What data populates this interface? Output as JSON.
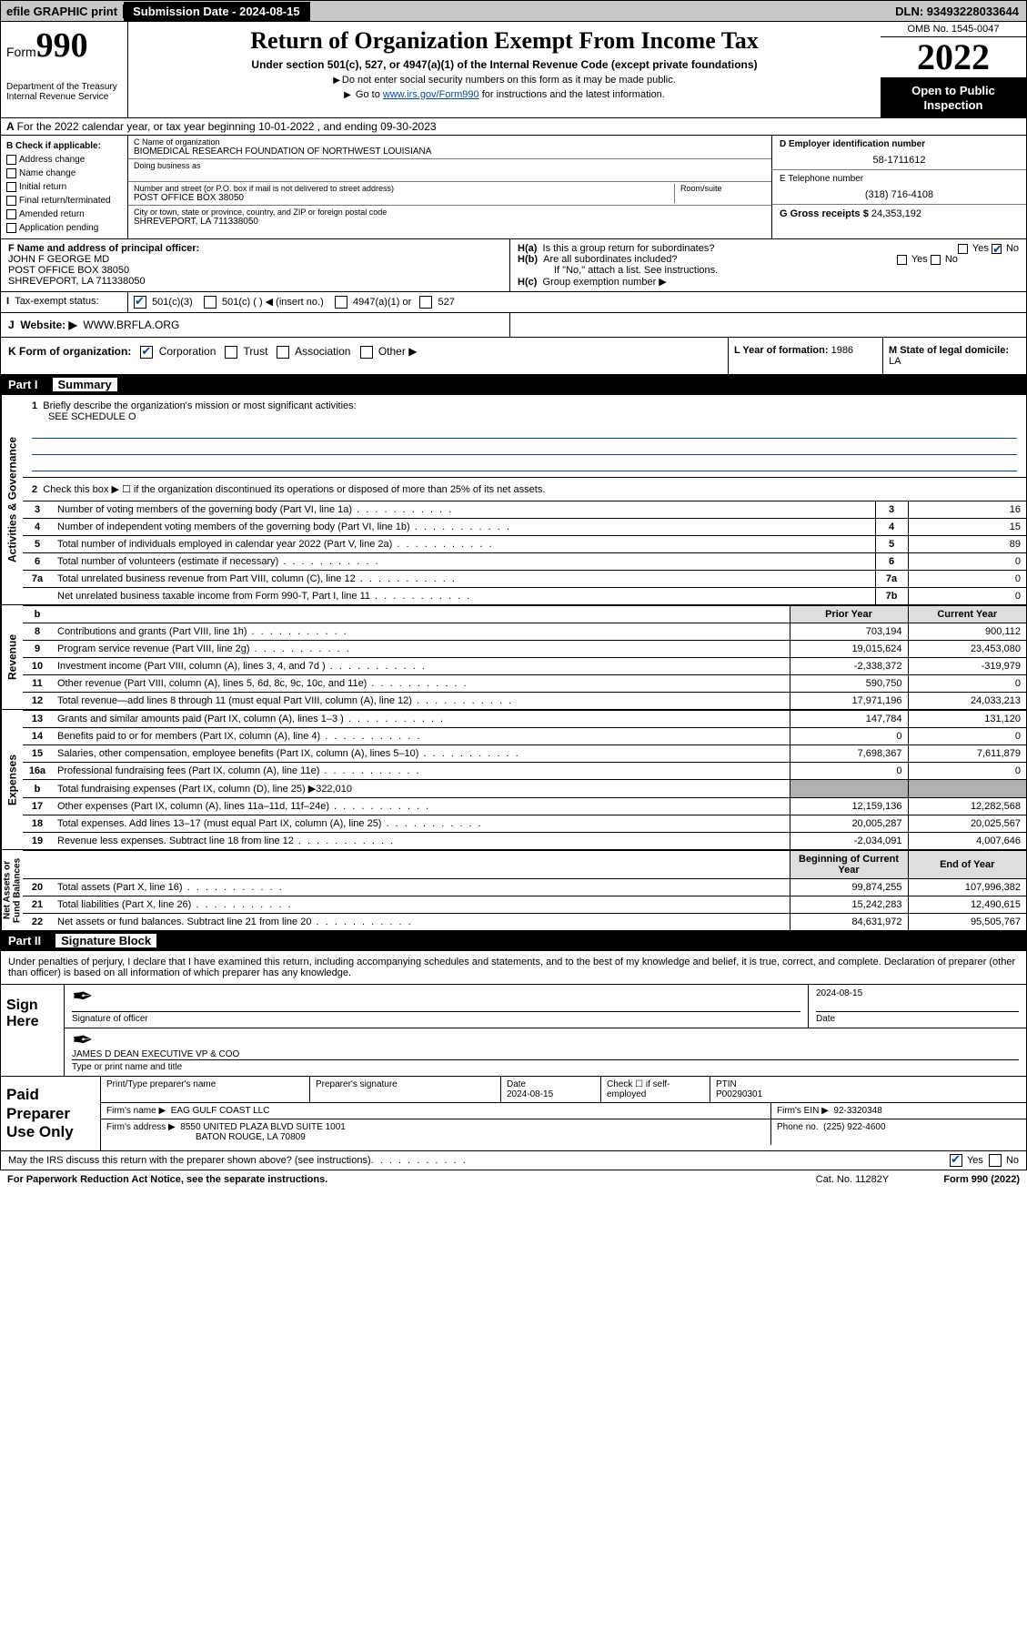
{
  "topbar": {
    "print_label": "efile GRAPHIC print",
    "submission_label": "Submission Date - 2024-08-15",
    "dln": "DLN: 93493228033644"
  },
  "header": {
    "form_prefix": "Form",
    "form_number": "990",
    "title": "Return of Organization Exempt From Income Tax",
    "subtitle": "Under section 501(c), 527, or 4947(a)(1) of the Internal Revenue Code (except private foundations)",
    "note1": "Do not enter social security numbers on this form as it may be made public.",
    "note2_prefix": "Go to ",
    "note2_link": "www.irs.gov/Form990",
    "note2_suffix": " for instructions and the latest information.",
    "dept": "Department of the Treasury\nInternal Revenue Service",
    "omb": "OMB No. 1545-0047",
    "year": "2022",
    "inspection": "Open to Public Inspection"
  },
  "rowA": "For the 2022 calendar year, or tax year beginning 10-01-2022     , and ending 09-30-2023",
  "B": {
    "header": "B Check if applicable:",
    "items": [
      "Address change",
      "Name change",
      "Initial return",
      "Final return/terminated",
      "Amended return",
      "Application pending"
    ]
  },
  "C": {
    "name_label": "C Name of organization",
    "name": "BIOMEDICAL RESEARCH FOUNDATION OF NORTHWEST LOUISIANA",
    "dba_label": "Doing business as",
    "street_label": "Number and street (or P.O. box if mail is not delivered to street address)",
    "street": "POST OFFICE BOX 38050",
    "suite_label": "Room/suite",
    "city_label": "City or town, state or province, country, and ZIP or foreign postal code",
    "city": "SHREVEPORT, LA  711338050"
  },
  "D": {
    "label": "D Employer identification number",
    "value": "58-1711612"
  },
  "E": {
    "label": "E Telephone number",
    "value": "(318) 716-4108"
  },
  "G": {
    "label": "G Gross receipts $",
    "value": "24,353,192"
  },
  "F": {
    "label": "F Name and address of principal officer:",
    "name": "JOHN F GEORGE MD",
    "addr1": "POST OFFICE BOX 38050",
    "addr2": "SHREVEPORT, LA  711338050"
  },
  "H": {
    "a": "Is this a group return for subordinates?",
    "b": "Are all subordinates included?",
    "note": "If \"No,\" attach a list. See instructions.",
    "c": "Group exemption number ▶",
    "yes": "Yes",
    "no": "No"
  },
  "I": {
    "label": "Tax-exempt status:",
    "opts": [
      "501(c)(3)",
      "501(c) (  ) ◀ (insert no.)",
      "4947(a)(1) or",
      "527"
    ]
  },
  "J": {
    "label": "Website: ▶",
    "value": "WWW.BRFLA.ORG"
  },
  "K": {
    "label": "K Form of organization:",
    "opts": [
      "Corporation",
      "Trust",
      "Association",
      "Other ▶"
    ]
  },
  "L": {
    "label": "L Year of formation:",
    "value": "1986"
  },
  "M": {
    "label": "M State of legal domicile:",
    "value": "LA"
  },
  "part1": {
    "label": "Part I",
    "title": "Summary"
  },
  "summary": {
    "q1": "Briefly describe the organization's mission or most significant activities:",
    "q1_ans": "SEE SCHEDULE O",
    "q2": "Check this box ▶ ☐  if the organization discontinued its operations or disposed of more than 25% of its net assets.",
    "rows_top": [
      {
        "n": "3",
        "d": "Number of voting members of the governing body (Part VI, line 1a)",
        "box": "3",
        "v": "16"
      },
      {
        "n": "4",
        "d": "Number of independent voting members of the governing body (Part VI, line 1b)",
        "box": "4",
        "v": "15"
      },
      {
        "n": "5",
        "d": "Total number of individuals employed in calendar year 2022 (Part V, line 2a)",
        "box": "5",
        "v": "89"
      },
      {
        "n": "6",
        "d": "Total number of volunteers (estimate if necessary)",
        "box": "6",
        "v": "0"
      },
      {
        "n": "7a",
        "d": "Total unrelated business revenue from Part VIII, column (C), line 12",
        "box": "7a",
        "v": "0"
      },
      {
        "n": "",
        "d": "Net unrelated business taxable income from Form 990-T, Part I, line 11",
        "box": "7b",
        "v": "0"
      }
    ],
    "hdr_prior": "Prior Year",
    "hdr_current": "Current Year",
    "revenue": [
      {
        "n": "8",
        "d": "Contributions and grants (Part VIII, line 1h)",
        "pv": "703,194",
        "cv": "900,112"
      },
      {
        "n": "9",
        "d": "Program service revenue (Part VIII, line 2g)",
        "pv": "19,015,624",
        "cv": "23,453,080"
      },
      {
        "n": "10",
        "d": "Investment income (Part VIII, column (A), lines 3, 4, and 7d )",
        "pv": "-2,338,372",
        "cv": "-319,979"
      },
      {
        "n": "11",
        "d": "Other revenue (Part VIII, column (A), lines 5, 6d, 8c, 9c, 10c, and 11e)",
        "pv": "590,750",
        "cv": "0"
      },
      {
        "n": "12",
        "d": "Total revenue—add lines 8 through 11 (must equal Part VIII, column (A), line 12)",
        "pv": "17,971,196",
        "cv": "24,033,213"
      }
    ],
    "expenses": [
      {
        "n": "13",
        "d": "Grants and similar amounts paid (Part IX, column (A), lines 1–3 )",
        "pv": "147,784",
        "cv": "131,120"
      },
      {
        "n": "14",
        "d": "Benefits paid to or for members (Part IX, column (A), line 4)",
        "pv": "0",
        "cv": "0"
      },
      {
        "n": "15",
        "d": "Salaries, other compensation, employee benefits (Part IX, column (A), lines 5–10)",
        "pv": "7,698,367",
        "cv": "7,611,879"
      },
      {
        "n": "16a",
        "d": "Professional fundraising fees (Part IX, column (A), line 11e)",
        "pv": "0",
        "cv": "0"
      }
    ],
    "exp_b": {
      "n": "b",
      "d": "Total fundraising expenses (Part IX, column (D), line 25) ▶322,010"
    },
    "expenses2": [
      {
        "n": "17",
        "d": "Other expenses (Part IX, column (A), lines 11a–11d, 11f–24e)",
        "pv": "12,159,136",
        "cv": "12,282,568"
      },
      {
        "n": "18",
        "d": "Total expenses. Add lines 13–17 (must equal Part IX, column (A), line 25)",
        "pv": "20,005,287",
        "cv": "20,025,567"
      },
      {
        "n": "19",
        "d": "Revenue less expenses. Subtract line 18 from line 12",
        "pv": "-2,034,091",
        "cv": "4,007,646"
      }
    ],
    "hdr_begin": "Beginning of Current Year",
    "hdr_end": "End of Year",
    "netassets": [
      {
        "n": "20",
        "d": "Total assets (Part X, line 16)",
        "pv": "99,874,255",
        "cv": "107,996,382"
      },
      {
        "n": "21",
        "d": "Total liabilities (Part X, line 26)",
        "pv": "15,242,283",
        "cv": "12,490,615"
      },
      {
        "n": "22",
        "d": "Net assets or fund balances. Subtract line 21 from line 20",
        "pv": "84,631,972",
        "cv": "95,505,767"
      }
    ]
  },
  "vtabs": {
    "gov": "Activities & Governance",
    "rev": "Revenue",
    "exp": "Expenses",
    "net": "Net Assets or\nFund Balances"
  },
  "part2": {
    "label": "Part II",
    "title": "Signature Block"
  },
  "sig_para": "Under penalties of perjury, I declare that I have examined this return, including accompanying schedules and statements, and to the best of my knowledge and belief, it is true, correct, and complete. Declaration of preparer (other than officer) is based on all information of which preparer has any knowledge.",
  "sign": {
    "label": "Sign Here",
    "sig_of_officer": "Signature of officer",
    "date_label": "Date",
    "date": "2024-08-15",
    "name": "JAMES D DEAN  EXECUTIVE VP & COO",
    "name_label": "Type or print name and title"
  },
  "prep": {
    "label": "Paid Preparer Use Only",
    "h": [
      "Print/Type preparer's name",
      "Preparer's signature",
      "Date",
      "",
      "PTIN"
    ],
    "date": "2024-08-15",
    "check_label": "Check ☐ if self-employed",
    "ptin": "P00290301",
    "firm_name_label": "Firm's name      ▶",
    "firm_name": "EAG GULF COAST LLC",
    "firm_ein_label": "Firm's EIN ▶",
    "firm_ein": "92-3320348",
    "firm_addr_label": "Firm's address ▶",
    "firm_addr1": "8550 UNITED PLAZA BLVD SUITE 1001",
    "firm_addr2": "BATON ROUGE, LA  70809",
    "phone_label": "Phone no.",
    "phone": "(225) 922-4600"
  },
  "footer_q": "May the IRS discuss this return with the preparer shown above? (see instructions)",
  "footer": {
    "paperwork": "For Paperwork Reduction Act Notice, see the separate instructions.",
    "cat": "Cat. No. 11282Y",
    "form": "Form 990 (2022)"
  }
}
